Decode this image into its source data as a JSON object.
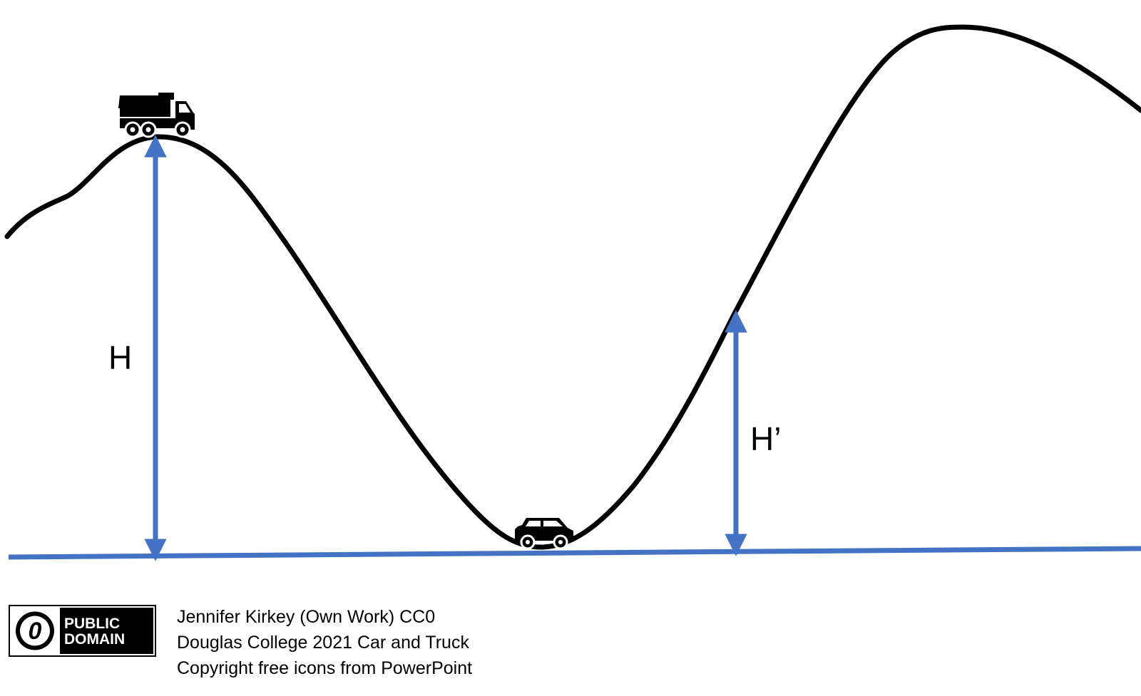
{
  "labels": {
    "height_start": "H",
    "height_end": "H’"
  },
  "icons": {
    "truck": "dump-truck-icon",
    "car": "car-icon",
    "badge": "public-domain-badge"
  },
  "badge": {
    "symbol": "0",
    "line1": "PUBLIC",
    "line2": "DOMAIN"
  },
  "credits": {
    "line1": "Jennifer Kirkey (Own Work) CC0",
    "line2": "Douglas College 2021 Car and Truck",
    "line3": "Copyright free icons from PowerPoint"
  },
  "colors": {
    "track": "#000000",
    "arrows": "#4472C4",
    "ground": "#4472C4"
  }
}
